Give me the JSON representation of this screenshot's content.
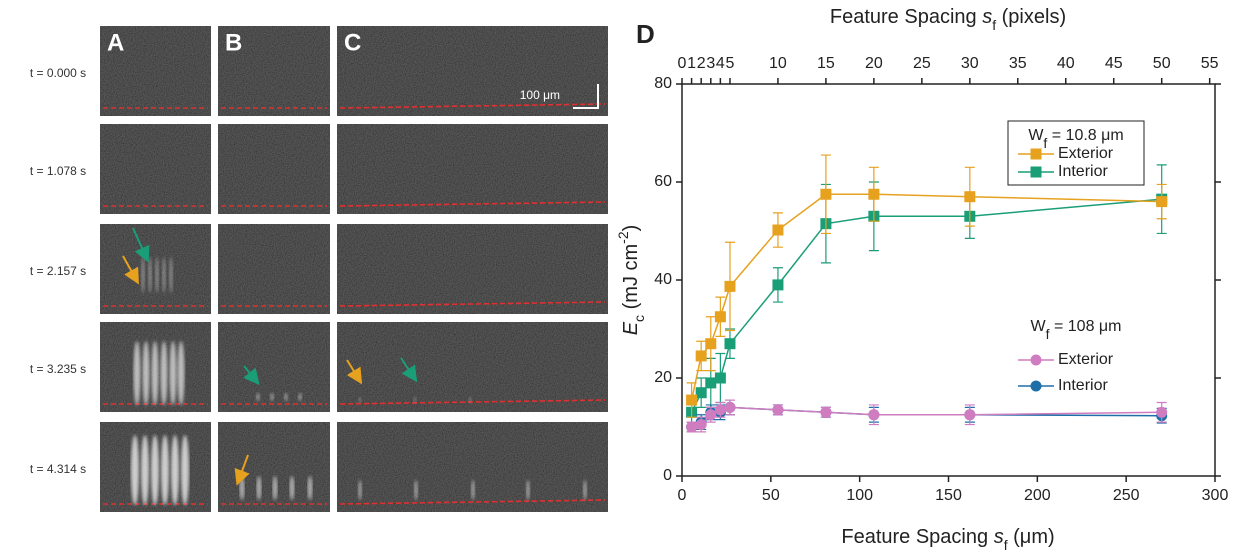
{
  "panels": {
    "labels": [
      "A",
      "B",
      "C"
    ],
    "times": [
      "t = 0.000 s",
      "t = 1.078 s",
      "t = 2.157 s",
      "t = 3.235 s",
      "t = 4.314 s"
    ],
    "scale_bar": "100 μm"
  },
  "chart_data": {
    "type": "line",
    "panel_label": "D",
    "xlabel": [
      "Feature Spacing ",
      "s",
      "f",
      " (μm)"
    ],
    "x2label": [
      "Feature Spacing ",
      "s",
      "f",
      " (pixels)"
    ],
    "ylabel": [
      "E",
      "c",
      " (mJ cm",
      "-2",
      ")"
    ],
    "x": [
      5.4,
      10.8,
      16.2,
      21.6,
      27,
      54,
      81,
      108,
      162,
      270
    ],
    "xlim": [
      0,
      300
    ],
    "xticks": [
      0,
      50,
      100,
      150,
      200,
      250,
      300
    ],
    "x2lim": [
      0,
      55.5556
    ],
    "x2ticks": [
      0,
      1,
      2,
      3,
      4,
      5,
      10,
      15,
      20,
      25,
      30,
      35,
      40,
      45,
      50,
      55
    ],
    "ylim": [
      0,
      80
    ],
    "yticks": [
      0,
      20,
      40,
      60,
      80
    ],
    "legend_groups": [
      [
        "W",
        "f",
        " = 10.8 μm"
      ],
      [
        "W",
        "f",
        " = 108 μm"
      ]
    ],
    "series": [
      {
        "name": "Exterior",
        "group": 0,
        "marker": "square",
        "color": "#E6A11F",
        "values": [
          15.5,
          24.5,
          27,
          32.5,
          38.7,
          50.2,
          57.5,
          57.5,
          57,
          56
        ],
        "errors": [
          3.5,
          3,
          5.5,
          4,
          9,
          3.5,
          8,
          5.5,
          6,
          3.5
        ]
      },
      {
        "name": "Interior",
        "group": 0,
        "marker": "square",
        "color": "#1A9E78",
        "values": [
          13,
          17,
          19,
          20,
          27,
          39,
          51.5,
          53,
          53,
          56.5
        ],
        "errors": [
          3,
          3,
          5,
          5,
          3,
          3.5,
          8,
          7,
          4.5,
          7
        ]
      },
      {
        "name": "Exterior",
        "group": 1,
        "marker": "circle",
        "color": "#D07CC0",
        "values": [
          10,
          10.5,
          12.5,
          13.5,
          14,
          13.5,
          13,
          12.5,
          12.5,
          13
        ],
        "errors": [
          1,
          1.5,
          1.5,
          1.5,
          1.5,
          1,
          1,
          2,
          2,
          2
        ]
      },
      {
        "name": "Interior",
        "group": 1,
        "marker": "circle",
        "color": "#1E6FA8",
        "values": [
          10,
          11,
          13,
          13,
          14,
          13.5,
          13,
          12.5,
          12.5,
          12.3
        ],
        "errors": [
          1,
          1.5,
          1.5,
          1.5,
          1.5,
          1,
          1,
          1.5,
          1.5,
          1.5
        ]
      }
    ]
  }
}
